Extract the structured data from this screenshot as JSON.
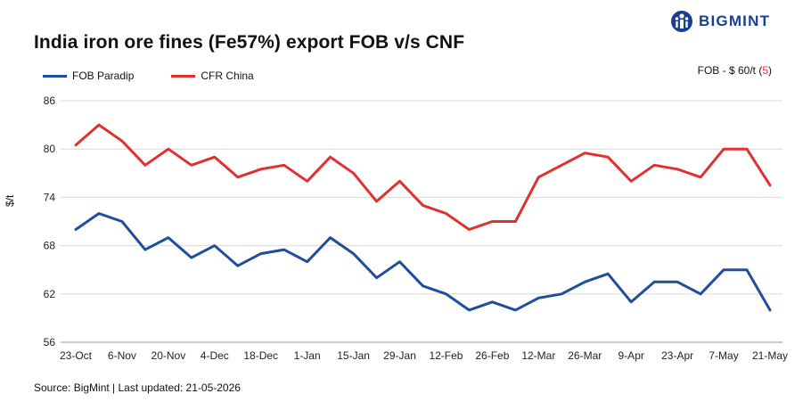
{
  "title": "India iron ore fines (Fe57%) export FOB v/s CNF",
  "logo": {
    "text": "BIGMINT",
    "color": "#1b3f8f"
  },
  "note": {
    "prefix": "FOB - $ 60/t (",
    "value": "5",
    "suffix": ")"
  },
  "source": "Source: BigMint | Last updated: 21-05-2026",
  "chart_data": {
    "type": "line",
    "ylabel": "$/t",
    "ylim": [
      56,
      86
    ],
    "yticks": [
      56,
      62,
      68,
      74,
      80,
      86
    ],
    "grid": true,
    "legend_position": "top-left",
    "x_tick_labels": [
      "23-Oct",
      "6-Nov",
      "20-Nov",
      "4-Dec",
      "18-Dec",
      "1-Jan",
      "15-Jan",
      "29-Jan",
      "12-Feb",
      "26-Feb",
      "12-Mar",
      "26-Mar",
      "9-Apr",
      "23-Apr",
      "7-May",
      "21-May"
    ],
    "x": [
      "23-Oct",
      "30-Oct",
      "6-Nov",
      "13-Nov",
      "20-Nov",
      "27-Nov",
      "4-Dec",
      "11-Dec",
      "18-Dec",
      "25-Dec",
      "1-Jan",
      "8-Jan",
      "15-Jan",
      "22-Jan",
      "29-Jan",
      "5-Feb",
      "12-Feb",
      "19-Feb",
      "26-Feb",
      "5-Mar",
      "12-Mar",
      "19-Mar",
      "26-Mar",
      "2-Apr",
      "9-Apr",
      "16-Apr",
      "23-Apr",
      "30-Apr",
      "7-May",
      "14-May",
      "21-May"
    ],
    "series": [
      {
        "name": "FOB Paradip",
        "color": "#1f4e9c",
        "values": [
          70,
          72,
          71,
          67.5,
          69,
          66.5,
          68,
          65.5,
          67,
          67.5,
          66,
          69,
          67,
          64,
          66,
          63,
          62,
          60,
          61,
          60,
          61.5,
          62,
          63.5,
          64.5,
          61,
          63.5,
          63.5,
          62,
          65,
          65,
          60
        ]
      },
      {
        "name": "CFR China",
        "color": "#e03131",
        "values": [
          80.5,
          83,
          81,
          78,
          80,
          78,
          79,
          76.5,
          77.5,
          78,
          76,
          79,
          77,
          73.5,
          76,
          73,
          72,
          70,
          71,
          71,
          76.5,
          78,
          79.5,
          79,
          76,
          78,
          77.5,
          76.5,
          80,
          80,
          75.5
        ]
      }
    ]
  }
}
